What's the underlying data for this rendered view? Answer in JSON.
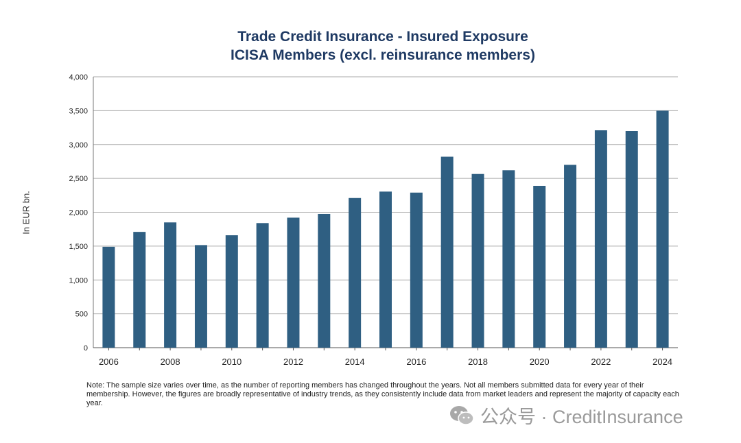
{
  "chart_data": {
    "type": "bar",
    "title": "Trade Credit Insurance - Insured Exposure",
    "subtitle": "ICISA Members (excl. reinsurance members)",
    "xlabel": "",
    "ylabel": "In EUR bn.",
    "categories": [
      "2006",
      "2007",
      "2008",
      "2009",
      "2010",
      "2011",
      "2012",
      "2013",
      "2014",
      "2015",
      "2016",
      "2017",
      "2018",
      "2019",
      "2020",
      "2021",
      "2022",
      "2023",
      "2024"
    ],
    "x_tick_labels": [
      "2006",
      "2008",
      "2010",
      "2012",
      "2014",
      "2016",
      "2018",
      "2020",
      "2022",
      "2024"
    ],
    "values": [
      1490,
      1710,
      1850,
      1515,
      1660,
      1840,
      1920,
      1975,
      2210,
      2305,
      2290,
      2820,
      2565,
      2620,
      2390,
      2700,
      3210,
      3200,
      3500
    ],
    "ylim": [
      0,
      4000
    ],
    "y_ticks": [
      "0",
      "500",
      "1,000",
      "1,500",
      "2,000",
      "2,500",
      "3,000",
      "3,500",
      "4,000"
    ],
    "grid": true,
    "legend": "none",
    "bar_color": "#2f5f82",
    "grid_color": "#aaaaaa"
  },
  "note": "Note: The sample size varies over time, as the number of reporting members has changed throughout the years. Not all members submitted data for every year of their membership. However, the figures are broadly representative of industry trends, as they consistently include data from market leaders and represent the majority of capacity each year.",
  "watermark": {
    "icon": "wechat-icon",
    "text": "公众号 · CreditInsurance"
  }
}
